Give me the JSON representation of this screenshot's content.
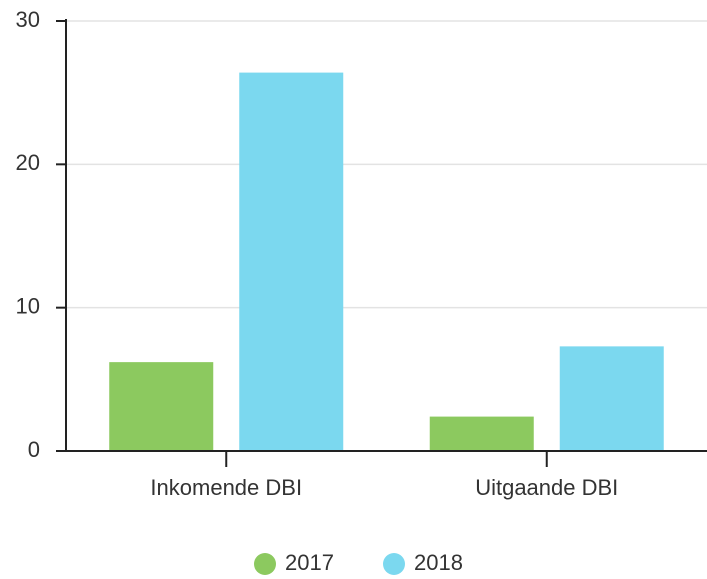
{
  "chart_data": {
    "type": "bar",
    "categories": [
      "Inkomende DBI",
      "Uitgaande DBI"
    ],
    "series": [
      {
        "name": "2017",
        "color": "#8cc95f",
        "values": [
          6.2,
          2.4
        ]
      },
      {
        "name": "2018",
        "color": "#7bd8ef",
        "values": [
          26.4,
          7.3
        ]
      }
    ],
    "ylim": [
      0,
      30
    ],
    "yticks": [
      0,
      10,
      20,
      30
    ],
    "grid": true,
    "legend": "bottom"
  }
}
